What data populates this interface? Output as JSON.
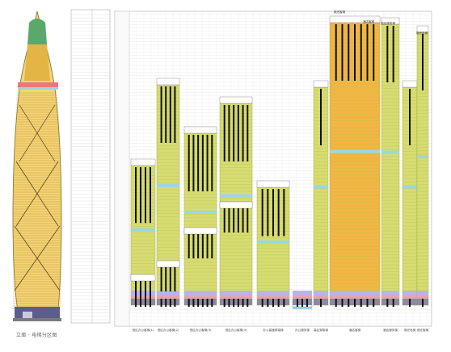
{
  "caption": "立面 · 电梯分区图",
  "colors": {
    "ground": "#8a8aa0",
    "ground_dark": "#3a3a5e",
    "olive": "#d6dc70",
    "olive_edge": "#9da53a",
    "orange": "#f2b642",
    "cyan": "#9ad7e4",
    "pink": "#e9a3a8",
    "lavender": "#b7b4e8",
    "shaft": "#111111",
    "grid": "#b8b8b8",
    "tower_green": "#5aa86a",
    "tower_gold": "#e3b545"
  },
  "zones": [
    {
      "id": "low-1",
      "label": "低区办公客梯(1)",
      "col_x0": 162,
      "col_x1": 192,
      "top_floor_y": 205,
      "shafts": 4
    },
    {
      "id": "low-2",
      "label": "低区办公客梯(2)",
      "col_x0": 194,
      "col_x1": 222,
      "top_floor_y": 105,
      "shafts": 4
    },
    {
      "id": "mid-1",
      "label": "低区办公客梯(3)",
      "col_x0": 228,
      "col_x1": 268,
      "top_floor_y": 165,
      "shafts": 6
    },
    {
      "id": "mid-2",
      "label": "低区办公客梯(4)",
      "col_x0": 272,
      "col_x1": 312,
      "top_floor_y": 128,
      "shafts": 6
    },
    {
      "id": "high",
      "label": "办公高速穿梭梯",
      "col_x0": 318,
      "col_x1": 358,
      "top_floor_y": 232,
      "shafts": 5
    },
    {
      "id": "svc",
      "label": "办公服务梯",
      "col_x0": 362,
      "col_x1": 386,
      "top_floor_y": 380,
      "shafts": 3
    },
    {
      "id": "shuttle",
      "label": "高区穿梭梯",
      "col_x0": 388,
      "col_x1": 406,
      "top_floor_y": 108,
      "shafts": 1
    },
    {
      "id": "hotel",
      "label": "酒店客梯",
      "col_x0": 408,
      "col_x1": 470,
      "top_floor_y": 28,
      "shafts": 7
    },
    {
      "id": "hotel-s",
      "label": "酒店服务梯",
      "col_x0": 472,
      "col_x1": 494,
      "top_floor_y": 30,
      "shafts": 2
    },
    {
      "id": "obs",
      "label": "观光电梯",
      "col_x0": 498,
      "col_x1": 516,
      "top_floor_y": 108,
      "shafts": 1
    },
    {
      "id": "top",
      "label": "观光客梯",
      "col_x0": 516,
      "col_x1": 530,
      "top_floor_y": 40,
      "shafts": 1
    }
  ],
  "top_labels": [
    "观光客梯",
    "酒店客梯",
    "酒店服务梯",
    "观光电梯"
  ]
}
